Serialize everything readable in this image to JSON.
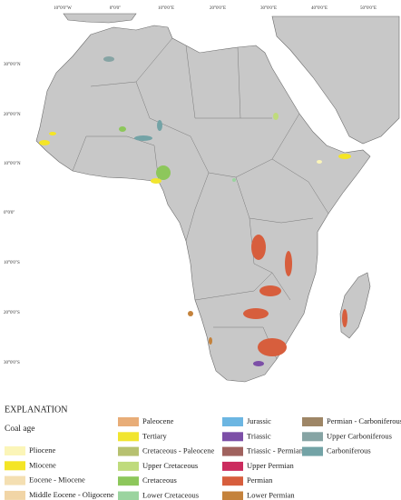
{
  "map": {
    "longitude_labels": [
      "10°0'0\"W",
      "0°0'0\"",
      "10°0'0\"E",
      "20°0'0\"E",
      "30°0'0\"E",
      "40°0'0\"E",
      "50°0'0\"E"
    ],
    "latitude_labels": [
      "30°0'0\"N",
      "20°0'0\"N",
      "10°0'0\"N",
      "0°0'0\"",
      "10°0'0\"S",
      "20°0'0\"S",
      "30°0'0\"S"
    ]
  },
  "legend": {
    "heading": "EXPLANATION",
    "subheading": "Coal age",
    "items": [
      {
        "label": "Pliocene",
        "color": "#fbf5b8"
      },
      {
        "label": "Miocene",
        "color": "#f4e526"
      },
      {
        "label": "Eocene - Miocene",
        "color": "#f4dfb2"
      },
      {
        "label": "Middle Eocene - Oligocene",
        "color": "#f1d5a6"
      },
      {
        "label": "Paleocene",
        "color": "#e8ad78"
      },
      {
        "label": "Tertiary",
        "color": "#f1e52f"
      },
      {
        "label": "Cretaceous - Paleocene",
        "color": "#b7c170"
      },
      {
        "label": "Upper Cretaceous",
        "color": "#bfdb7c"
      },
      {
        "label": "Cretaceous",
        "color": "#8dc75b"
      },
      {
        "label": "Lower Cretaceous",
        "color": "#9bd49f"
      },
      {
        "label": "Jurassic",
        "color": "#6cb6e2"
      },
      {
        "label": "Triassic",
        "color": "#7c4fa7"
      },
      {
        "label": "Triassic - Permian",
        "color": "#a0625e"
      },
      {
        "label": "Upper Permian",
        "color": "#cb2b5e"
      },
      {
        "label": "Permian",
        "color": "#d75e3d"
      },
      {
        "label": "Lower Permian",
        "color": "#c4823c"
      },
      {
        "label": "Permian - Carboniferous",
        "color": "#9e8666"
      },
      {
        "label": "Upper Carboniferous",
        "color": "#86a4a4"
      },
      {
        "label": "Carboniferous",
        "color": "#73a3a6"
      }
    ]
  }
}
